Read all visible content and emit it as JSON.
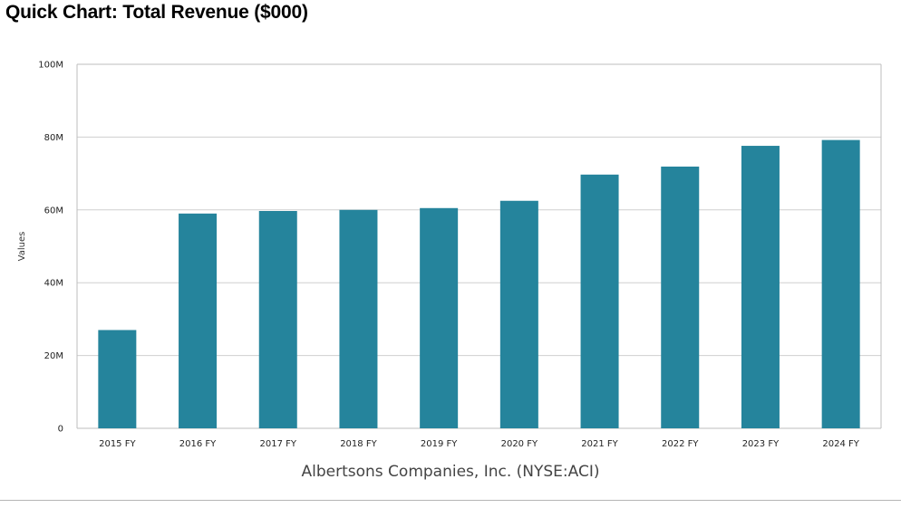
{
  "page": {
    "title": "Quick Chart: Total Revenue ($000)",
    "company": "Albertsons Companies, Inc. (NYSE:ACI)"
  },
  "chart_data": {
    "type": "bar",
    "title": "Quick Chart: Total Revenue ($000)",
    "xlabel": "",
    "ylabel": "Values",
    "categories": [
      "2015 FY",
      "2016 FY",
      "2017 FY",
      "2018 FY",
      "2019 FY",
      "2020 FY",
      "2021 FY",
      "2022 FY",
      "2023 FY",
      "2024 FY"
    ],
    "values": [
      27000000,
      59000000,
      59700000,
      60000000,
      60500000,
      62500000,
      69700000,
      71900000,
      77600000,
      79200000
    ],
    "ylim": [
      0,
      100000000
    ],
    "yticks": [
      0,
      20000000,
      40000000,
      60000000,
      80000000,
      100000000
    ],
    "ytick_labels": [
      "0",
      "20M",
      "40M",
      "60M",
      "80M",
      "100M"
    ],
    "grid": true,
    "legend": "none",
    "bar_color": "#25849c"
  },
  "colors": {
    "bar": "#25849c",
    "gridline": "#cfcfcf",
    "frame": "#bdbdbd"
  }
}
